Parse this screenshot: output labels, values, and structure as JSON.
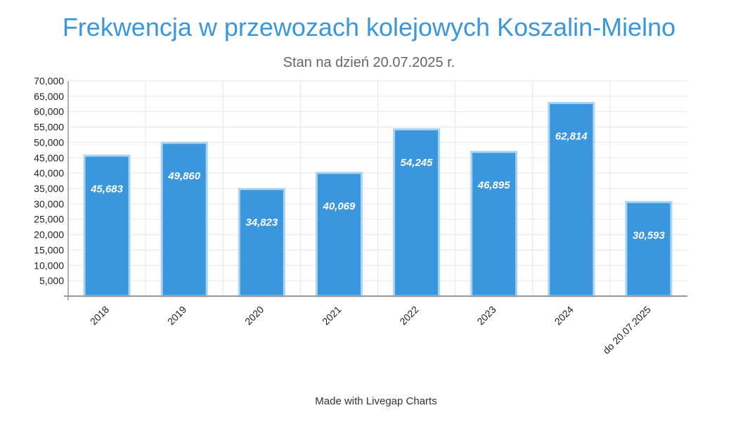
{
  "title": "Frekwencja w przewozach kolejowych Koszalin-Mielno",
  "subtitle": "Stan na dzień 20.07.2025 r.",
  "footer": "Made with Livegap Charts",
  "colors": {
    "bar_fill": "#3a96dd",
    "bar_border": "#a8d4f2",
    "title": "#3a96dd",
    "grid": "#e6e6e6"
  },
  "chart_data": {
    "type": "bar",
    "title": "Frekwencja w przewozach kolejowych Koszalin-Mielno",
    "subtitle": "Stan na dzień 20.07.2025 r.",
    "categories": [
      "2018",
      "2019",
      "2020",
      "2021",
      "2022",
      "2023",
      "2024",
      "do 20.07.2025"
    ],
    "values": [
      45683,
      49860,
      34823,
      40069,
      54245,
      46895,
      62814,
      30593
    ],
    "value_labels": [
      "45,683",
      "49,860",
      "34,823",
      "40,069",
      "54,245",
      "46,895",
      "62,814",
      "30,593"
    ],
    "yticks": [
      5000,
      10000,
      15000,
      20000,
      25000,
      30000,
      35000,
      40000,
      45000,
      50000,
      55000,
      60000,
      65000,
      70000
    ],
    "ytick_labels": [
      "5,000",
      "10,000",
      "15,000",
      "20,000",
      "25,000",
      "30,000",
      "35,000",
      "40,000",
      "45,000",
      "50,000",
      "55,000",
      "60,000",
      "65,000",
      "70,000"
    ],
    "ylim": [
      0,
      70000
    ],
    "grid": true,
    "legend": "none"
  }
}
